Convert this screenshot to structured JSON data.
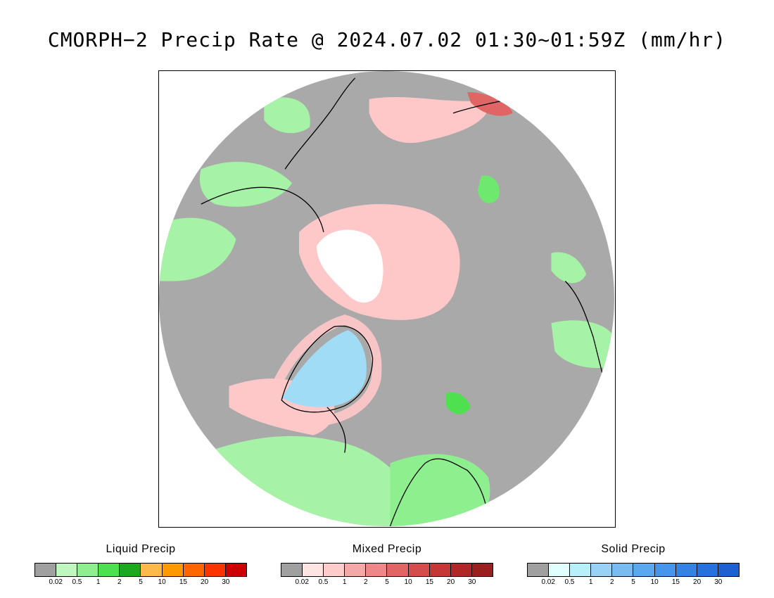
{
  "title": "CMORPH−2 Precip Rate @ 2024.07.02 01:30~01:59Z (mm/hr)",
  "map": {
    "projection": "north-polar-stereographic",
    "background_color": "#a9a9a9",
    "liquid_light_color": "#a6f2a6",
    "liquid_mid_color": "#6ee86e",
    "mixed_color": "#ffc8c8",
    "ice_color": "#ffffff",
    "solid_color": "#a0dcf5",
    "coast_color": "#000000"
  },
  "legends": [
    {
      "title": "Liquid Precip",
      "colors": [
        "#a0a0a0",
        "#bff7bf",
        "#8eef8e",
        "#4fe04f",
        "#1ea81e",
        "#ffb84d",
        "#ff9900",
        "#ff6600",
        "#ff3300",
        "#cc0000"
      ],
      "ticks": [
        "0.02",
        "0.5",
        "1",
        "2",
        "5",
        "10",
        "15",
        "20",
        "30"
      ]
    },
    {
      "title": "Mixed Precip",
      "colors": [
        "#a0a0a0",
        "#ffe4e4",
        "#ffcccc",
        "#f5a8a8",
        "#ee8888",
        "#e06666",
        "#d44d4d",
        "#c53838",
        "#b02727",
        "#9a1f1f"
      ],
      "ticks": [
        "0.02",
        "0.5",
        "1",
        "2",
        "5",
        "10",
        "15",
        "20",
        "30"
      ]
    },
    {
      "title": "Solid Precip",
      "colors": [
        "#a0a0a0",
        "#e0ffff",
        "#b8f0fa",
        "#98d2f5",
        "#78bcf2",
        "#5aa8ef",
        "#4596ea",
        "#3383e3",
        "#2672dc",
        "#1e60cf"
      ],
      "ticks": [
        "0.02",
        "0.5",
        "1",
        "2",
        "5",
        "10",
        "15",
        "20",
        "30"
      ]
    }
  ]
}
